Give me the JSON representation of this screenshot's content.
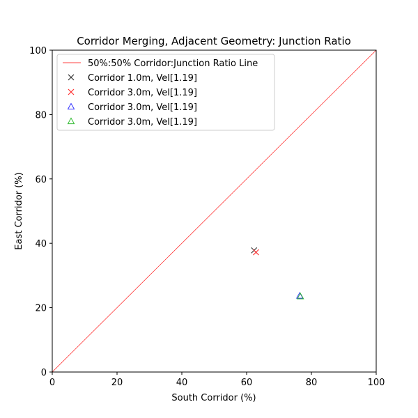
{
  "chart_data": {
    "type": "scatter",
    "title": "Corridor Merging, Adjacent Geometry: Junction Ratio",
    "xlabel": "South Corridor (%)",
    "ylabel": "East Corridor (%)",
    "xlim": [
      0,
      100
    ],
    "ylim": [
      0,
      100
    ],
    "xticks": [
      0,
      20,
      40,
      60,
      80,
      100
    ],
    "yticks": [
      0,
      20,
      40,
      60,
      80,
      100
    ],
    "grid": false,
    "legend_placement": "top-left",
    "reference_line": {
      "name": "50%:50% Corridor:Junction Ratio Line",
      "x": [
        0,
        100
      ],
      "y": [
        0,
        100
      ],
      "color": "#ff0000"
    },
    "series": [
      {
        "name": "Corridor 1.0m, Vel[1.19]",
        "marker": "x",
        "color": "#333333",
        "points": [
          [
            62.3,
            37.8
          ]
        ]
      },
      {
        "name": "Corridor 3.0m, Vel[1.19]",
        "marker": "x",
        "color": "#ff3333",
        "points": [
          [
            62.9,
            37.2
          ]
        ]
      },
      {
        "name": "Corridor 3.0m, Vel[1.19]",
        "marker": "triangle",
        "color": "#3333ff",
        "points": [
          [
            76.4,
            23.7
          ]
        ]
      },
      {
        "name": "Corridor 3.0m, Vel[1.19]",
        "marker": "triangle",
        "color": "#33bb33",
        "points": [
          [
            76.6,
            23.5
          ]
        ]
      }
    ]
  }
}
